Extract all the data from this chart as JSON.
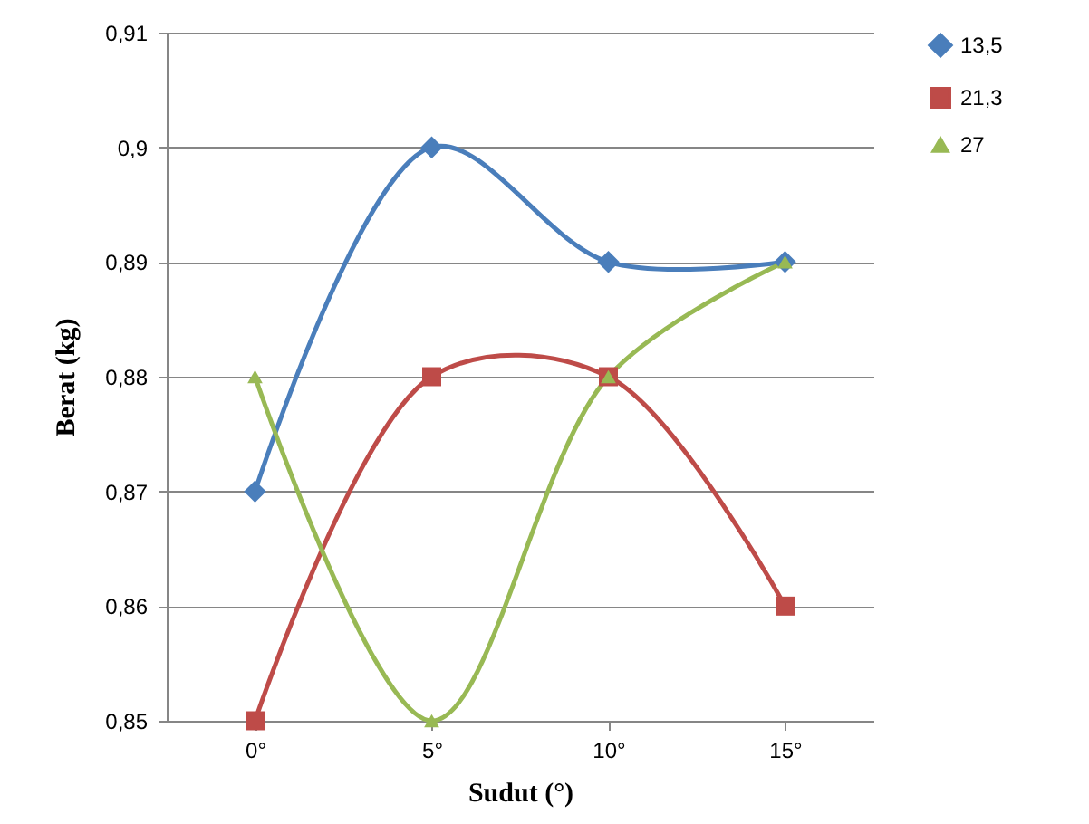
{
  "chart_data": {
    "type": "line",
    "xlabel": "Sudut (°)",
    "ylabel": "Berat (kg)",
    "categories": [
      "0°",
      "5°",
      "10°",
      "15°"
    ],
    "series": [
      {
        "name": "13,5",
        "color": "#4a7ebb",
        "marker": "diamond",
        "values": [
          0.87,
          0.9,
          0.89,
          0.89
        ]
      },
      {
        "name": "21,3",
        "color": "#be4b48",
        "marker": "square",
        "values": [
          0.85,
          0.88,
          0.88,
          0.86
        ]
      },
      {
        "name": "27",
        "color": "#98b954",
        "marker": "triangle",
        "values": [
          0.88,
          0.85,
          0.88,
          0.89
        ]
      }
    ],
    "ylim": [
      0.85,
      0.91
    ],
    "yticks": [
      {
        "value": 0.85,
        "label": "0,85"
      },
      {
        "value": 0.86,
        "label": "0,86"
      },
      {
        "value": 0.87,
        "label": "0,87"
      },
      {
        "value": 0.88,
        "label": "0,88"
      },
      {
        "value": 0.89,
        "label": "0,89"
      },
      {
        "value": 0.9,
        "label": "0,9"
      },
      {
        "value": 0.91,
        "label": "0,91"
      }
    ],
    "grid": "y",
    "legend": "right",
    "line_style": "solid"
  }
}
